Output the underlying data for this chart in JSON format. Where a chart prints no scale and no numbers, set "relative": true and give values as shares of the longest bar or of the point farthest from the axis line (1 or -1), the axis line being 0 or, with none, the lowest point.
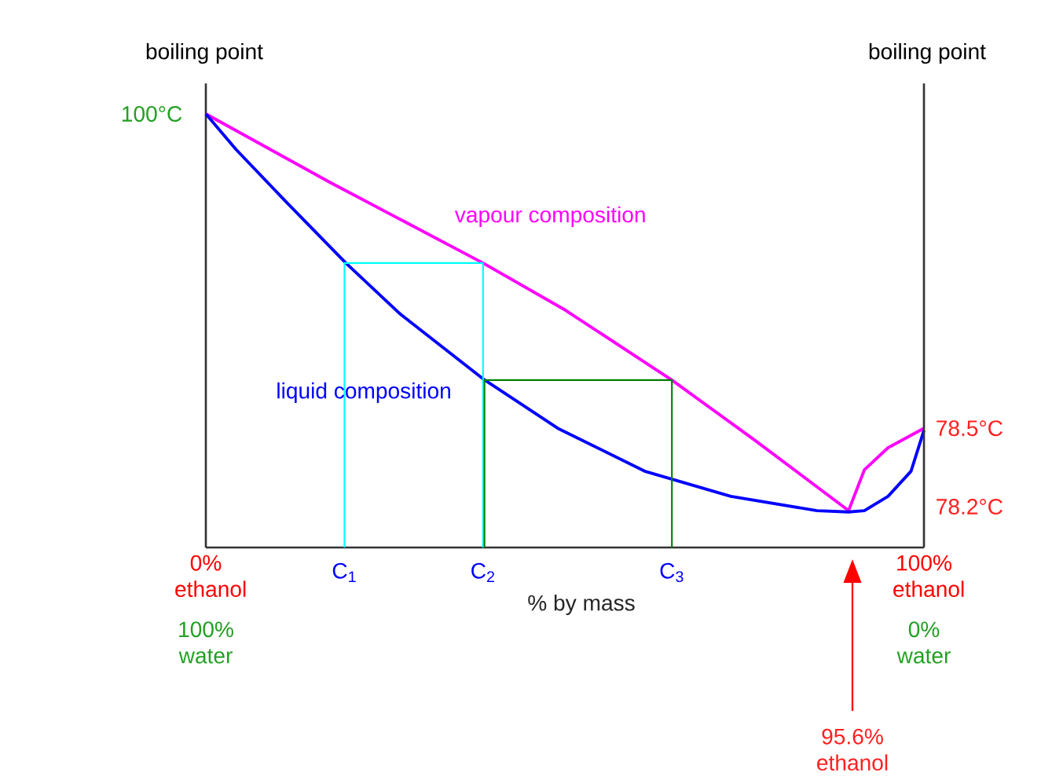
{
  "chart_data": {
    "type": "line",
    "ylabel": "boiling point",
    "y2label": "boiling point",
    "xlabel": "% by mass",
    "relative": true,
    "xlim": [
      0,
      100
    ],
    "xticks": [
      {
        "value": 0,
        "label": "0% ethanol"
      },
      {
        "value": 100,
        "label": "100% ethanol"
      }
    ],
    "series": [
      {
        "name": "vapour composition",
        "color": "#ff00ff",
        "x": [
          0,
          17.3,
          38.6,
          50.1,
          64.9,
          76.4,
          89.5,
          91.7,
          95.0,
          100
        ],
        "values": [
          1,
          0.842,
          0.656,
          0.547,
          0.386,
          0.248,
          0.085,
          0.179,
          0.23,
          0.275
        ]
      },
      {
        "name": "liquid composition",
        "color": "#0000ff",
        "x": [
          0,
          4.2,
          11.3,
          19.5,
          27.1,
          38.6,
          49.0,
          61.1,
          73.1,
          85.1,
          89.5,
          91.7,
          95.0,
          98.2,
          100
        ],
        "values": [
          1,
          0.918,
          0.795,
          0.656,
          0.538,
          0.389,
          0.275,
          0.176,
          0.118,
          0.085,
          0.082,
          0.085,
          0.118,
          0.176,
          0.27
        ]
      },
      {
        "color": "#00ffff",
        "x": [
          19.3,
          19.3,
          38.6,
          38.6
        ],
        "values": [
          0,
          0.656,
          0.656,
          0
        ]
      },
      {
        "color": "#008000",
        "x": [
          38.8,
          38.8,
          64.9,
          64.9
        ],
        "values": [
          0,
          0.386,
          0.386,
          0
        ]
      }
    ],
    "annotations": [
      {
        "text": "100°C",
        "x": 0,
        "y": 1
      },
      {
        "text": "78.5°C",
        "x": 100,
        "y": 0.275
      },
      "78.2°C",
      "100% water",
      "0% water",
      "95.6% ethanol",
      {
        "text": "C$_{1}$",
        "x": 19.3,
        "y": 0
      },
      {
        "text": "C$_{2}$",
        "x": 38.6,
        "y": 0
      },
      {
        "text": "C$_{3}$",
        "x": 64.9,
        "y": 0
      }
    ]
  }
}
